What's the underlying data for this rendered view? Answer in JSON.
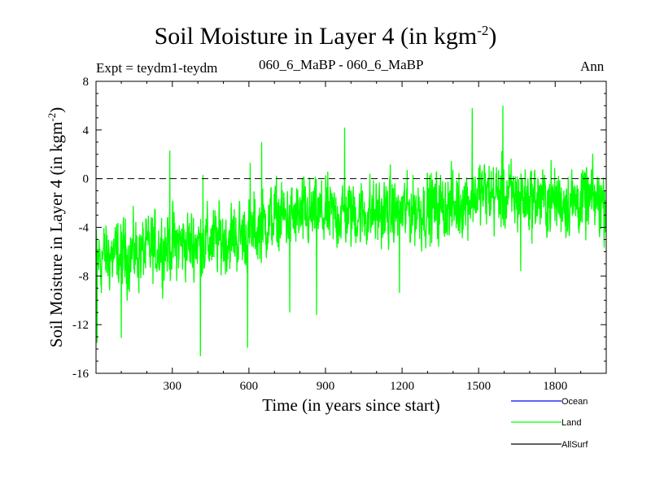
{
  "chart_data": {
    "type": "line",
    "title_main": "Soil Moisture in Layer 4 (in kgm",
    "title_sup": "-2",
    "title_close": ")",
    "expt_label": "Expt = teydm1-teydm",
    "subtitle": "060_6_MaBP - 060_6_MaBP",
    "season": "Ann",
    "xlabel": "Time (in years since start)",
    "ylabel_main": "Soil Moisture in Layer 4 (in kgm",
    "ylabel_sup": "-2",
    "ylabel_close": ")",
    "xlim": [
      1,
      2000
    ],
    "ylim": [
      -16,
      8
    ],
    "xticks": [
      300,
      600,
      900,
      1200,
      1500,
      1800
    ],
    "yticks": [
      8,
      4,
      0,
      -4,
      -8,
      -12,
      -16
    ],
    "reference_line": 0,
    "legend": [
      {
        "name": "Ocean",
        "color": "#0000ff"
      },
      {
        "name": "Land",
        "color": "#00ff00"
      },
      {
        "name": "AllSurf",
        "color": "#000000"
      }
    ],
    "series": [
      {
        "name": "Land",
        "color": "#00ff00",
        "x_start": 1,
        "x_end": 2000,
        "trend_points": [
          [
            1,
            -6.5
          ],
          [
            150,
            -6.2
          ],
          [
            300,
            -5.4
          ],
          [
            450,
            -5.2
          ],
          [
            600,
            -4.6
          ],
          [
            700,
            -3.2
          ],
          [
            900,
            -3.0
          ],
          [
            1200,
            -2.7
          ],
          [
            1400,
            -2.3
          ],
          [
            1500,
            -1.2
          ],
          [
            1700,
            -1.6
          ],
          [
            1800,
            -1.8
          ],
          [
            2000,
            -1.9
          ]
        ],
        "noise_amplitude": 2.4,
        "extremes": [
          [
            5,
            -13.5
          ],
          [
            20,
            -8.8
          ],
          [
            100,
            -13.1
          ],
          [
            290,
            2.3
          ],
          [
            410,
            -14.6
          ],
          [
            420,
            0.3
          ],
          [
            595,
            -13.9
          ],
          [
            605,
            1.3
          ],
          [
            650,
            3.0
          ],
          [
            760,
            -11.0
          ],
          [
            865,
            -11.2
          ],
          [
            975,
            4.2
          ],
          [
            1190,
            -9.4
          ],
          [
            1475,
            5.8
          ],
          [
            1595,
            6.0
          ],
          [
            1665,
            -7.6
          ]
        ]
      }
    ]
  }
}
